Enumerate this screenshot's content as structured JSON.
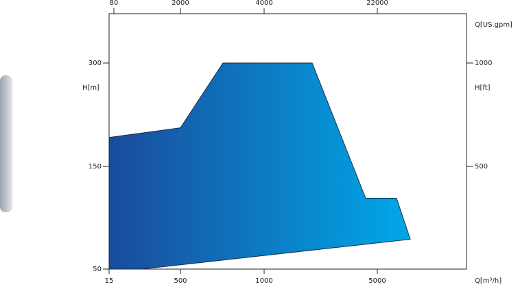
{
  "chart_data": {
    "type": "area",
    "x_label": "Q[m³/h]",
    "x2_label": "Q[US.gpm]",
    "y_label": "H[m]",
    "y2_label": "H[ft]",
    "xticks": [
      15,
      500,
      1000,
      5000
    ],
    "x2ticks": [
      80,
      2000,
      4000,
      22000
    ],
    "yticks": [
      50,
      150,
      300
    ],
    "y2ticks": [
      500,
      1000
    ],
    "x": [
      15,
      500,
      754,
      2697,
      4588,
      5679,
      6164,
      239,
      15
    ],
    "y": [
      192,
      206,
      300,
      300,
      119,
      119,
      79,
      50,
      50
    ],
    "fill_gradient": [
      "#1a4b9b",
      "#00a8e8"
    ],
    "stroke": "#1a2a4a"
  }
}
